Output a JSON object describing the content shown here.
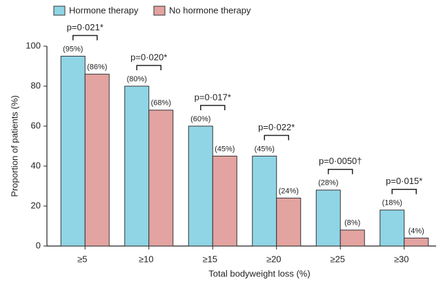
{
  "chart_data": {
    "type": "bar",
    "categories": [
      "≥5",
      "≥10",
      "≥15",
      "≥20",
      "≥25",
      "≥30"
    ],
    "series": [
      {
        "name": "Hormone therapy",
        "color": "#8fd5e6",
        "values": [
          95,
          80,
          60,
          45,
          28,
          18
        ],
        "value_labels": [
          "(95%)",
          "(80%)",
          "(60%)",
          "(45%)",
          "(28%)",
          "(18%)"
        ]
      },
      {
        "name": "No hormone therapy",
        "color": "#e3a3a0",
        "values": [
          86,
          68,
          45,
          24,
          8,
          4
        ],
        "value_labels": [
          "(86%)",
          "(68%)",
          "(45%)",
          "(24%)",
          "(8%)",
          "(4%)"
        ]
      }
    ],
    "annotations": [
      "p=0·021*",
      "p=0·020*",
      "p=0·017*",
      "p=0·022*",
      "p=0·0050†",
      "p=0·015*"
    ],
    "xlabel": "Total bodyweight loss (%)",
    "ylabel": "Proportion of patients (%)",
    "ylim": [
      0,
      100
    ],
    "yticks": [
      0,
      20,
      40,
      60,
      80,
      100
    ],
    "legend": "top-left"
  }
}
